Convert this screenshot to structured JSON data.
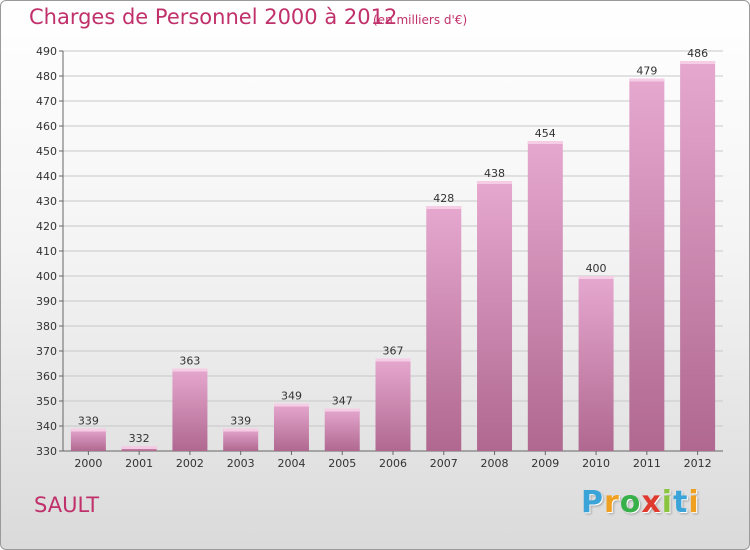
{
  "header": {
    "title": "Charges de Personnel 2000 à 2012",
    "subtitle": "(en milliers d'€)"
  },
  "footer": {
    "place": "SAULT",
    "logo": {
      "letters": [
        "P",
        "r",
        "o",
        "x",
        "i",
        "t",
        "i"
      ],
      "colors": [
        "#3aa3d8",
        "#f0a020",
        "#39b14a",
        "#e03a2f",
        "#8bc43f",
        "#3aa3d8",
        "#f0a020"
      ]
    }
  },
  "colors": {
    "bar_top": "#e6a8cf",
    "bar_bottom": "#b06890",
    "grid": "#c8c8c8",
    "accent": "#c0306a"
  },
  "chart_data": {
    "type": "bar",
    "categories": [
      "2000",
      "2001",
      "2002",
      "2003",
      "2004",
      "2005",
      "2006",
      "2007",
      "2008",
      "2009",
      "2010",
      "2011",
      "2012"
    ],
    "values": [
      339,
      332,
      363,
      339,
      349,
      347,
      367,
      428,
      438,
      454,
      400,
      479,
      486
    ],
    "ylim": [
      330,
      490
    ],
    "yticks": [
      330,
      340,
      350,
      360,
      370,
      380,
      390,
      400,
      410,
      420,
      430,
      440,
      450,
      460,
      470,
      480,
      490
    ],
    "grid": true
  }
}
